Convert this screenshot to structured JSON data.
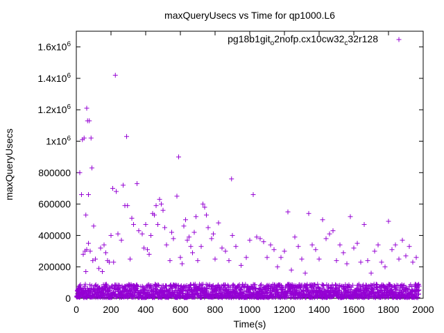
{
  "chart_data": {
    "type": "scatter",
    "title": "maxQueryUsecs vs Time for qp1000.L6",
    "xlabel": "Time(s)",
    "ylabel": "maxQueryUsecs",
    "xlim": [
      0,
      2000
    ],
    "ylim": [
      0,
      1700000
    ],
    "x_ticks": [
      {
        "value": 0,
        "label": "0"
      },
      {
        "value": 200,
        "label": "200"
      },
      {
        "value": 400,
        "label": "400"
      },
      {
        "value": 600,
        "label": "600"
      },
      {
        "value": 800,
        "label": "800"
      },
      {
        "value": 1000,
        "label": "1000"
      },
      {
        "value": 1200,
        "label": "1200"
      },
      {
        "value": 1400,
        "label": "1400"
      },
      {
        "value": 1600,
        "label": "1600"
      },
      {
        "value": 1800,
        "label": "1800"
      },
      {
        "value": 2000,
        "label": "2000"
      }
    ],
    "y_ticks": [
      {
        "value": 0,
        "label": "0"
      },
      {
        "value": 200000,
        "label": "200000"
      },
      {
        "value": 400000,
        "label": "400000"
      },
      {
        "value": 600000,
        "label": "600000"
      },
      {
        "value": 800000,
        "label": "800000"
      },
      {
        "value": 1000000,
        "label": "1x10",
        "sup": "6"
      },
      {
        "value": 1200000,
        "label": "1.2x10",
        "sup": "6"
      },
      {
        "value": 1400000,
        "label": "1.4x10",
        "sup": "6"
      },
      {
        "value": 1600000,
        "label": "1.6x10",
        "sup": "6"
      }
    ],
    "legend": {
      "position": "top-right",
      "parts": [
        {
          "text": "pg18b1git",
          "sub": false
        },
        {
          "text": "o",
          "sub": true
        },
        {
          "text": "2nofp.cx10cw32",
          "sub": false
        },
        {
          "text": "c",
          "sub": true
        },
        {
          "text": "32r128",
          "sub": false
        }
      ]
    },
    "grid": false,
    "series": [
      {
        "name": "pg18b1git_o2nofp.cx10cw32_c32r128",
        "color": "#9400d3",
        "marker": "plus",
        "points": [
          [
            20,
            800000
          ],
          [
            30,
            660000
          ],
          [
            35,
            1010000
          ],
          [
            45,
            1020000
          ],
          [
            60,
            1210000
          ],
          [
            65,
            1130000
          ],
          [
            75,
            1130000
          ],
          [
            85,
            1020000
          ],
          [
            90,
            830000
          ],
          [
            70,
            660000
          ],
          [
            55,
            530000
          ],
          [
            100,
            460000
          ],
          [
            40,
            280000
          ],
          [
            50,
            300000
          ],
          [
            55,
            170000
          ],
          [
            60,
            310000
          ],
          [
            70,
            350000
          ],
          [
            80,
            300000
          ],
          [
            95,
            240000
          ],
          [
            110,
            250000
          ],
          [
            130,
            190000
          ],
          [
            140,
            320000
          ],
          [
            150,
            170000
          ],
          [
            160,
            340000
          ],
          [
            170,
            290000
          ],
          [
            180,
            240000
          ],
          [
            190,
            230000
          ],
          [
            200,
            400000
          ],
          [
            210,
            700000
          ],
          [
            215,
            230000
          ],
          [
            225,
            1420000
          ],
          [
            230,
            680000
          ],
          [
            240,
            410000
          ],
          [
            260,
            370000
          ],
          [
            270,
            720000
          ],
          [
            280,
            590000
          ],
          [
            290,
            1030000
          ],
          [
            295,
            590000
          ],
          [
            310,
            250000
          ],
          [
            320,
            510000
          ],
          [
            330,
            470000
          ],
          [
            350,
            730000
          ],
          [
            360,
            430000
          ],
          [
            380,
            410000
          ],
          [
            390,
            320000
          ],
          [
            400,
            470000
          ],
          [
            410,
            310000
          ],
          [
            420,
            280000
          ],
          [
            430,
            400000
          ],
          [
            440,
            540000
          ],
          [
            450,
            530000
          ],
          [
            460,
            590000
          ],
          [
            470,
            470000
          ],
          [
            480,
            630000
          ],
          [
            490,
            600000
          ],
          [
            500,
            560000
          ],
          [
            510,
            450000
          ],
          [
            520,
            340000
          ],
          [
            540,
            240000
          ],
          [
            550,
            420000
          ],
          [
            560,
            380000
          ],
          [
            580,
            650000
          ],
          [
            590,
            900000
          ],
          [
            600,
            260000
          ],
          [
            610,
            220000
          ],
          [
            620,
            460000
          ],
          [
            630,
            500000
          ],
          [
            640,
            370000
          ],
          [
            650,
            390000
          ],
          [
            660,
            330000
          ],
          [
            670,
            290000
          ],
          [
            680,
            420000
          ],
          [
            690,
            520000
          ],
          [
            700,
            240000
          ],
          [
            720,
            330000
          ],
          [
            730,
            600000
          ],
          [
            740,
            580000
          ],
          [
            750,
            530000
          ],
          [
            760,
            450000
          ],
          [
            780,
            380000
          ],
          [
            790,
            410000
          ],
          [
            800,
            250000
          ],
          [
            820,
            480000
          ],
          [
            840,
            320000
          ],
          [
            860,
            300000
          ],
          [
            880,
            240000
          ],
          [
            895,
            760000
          ],
          [
            900,
            400000
          ],
          [
            920,
            330000
          ],
          [
            950,
            210000
          ],
          [
            980,
            260000
          ],
          [
            1000,
            370000
          ],
          [
            1020,
            660000
          ],
          [
            1040,
            390000
          ],
          [
            1060,
            380000
          ],
          [
            1080,
            360000
          ],
          [
            1100,
            260000
          ],
          [
            1120,
            340000
          ],
          [
            1140,
            310000
          ],
          [
            1160,
            200000
          ],
          [
            1180,
            260000
          ],
          [
            1200,
            300000
          ],
          [
            1220,
            550000
          ],
          [
            1240,
            180000
          ],
          [
            1260,
            390000
          ],
          [
            1280,
            330000
          ],
          [
            1300,
            250000
          ],
          [
            1320,
            160000
          ],
          [
            1340,
            540000
          ],
          [
            1360,
            340000
          ],
          [
            1380,
            310000
          ],
          [
            1400,
            250000
          ],
          [
            1420,
            500000
          ],
          [
            1440,
            380000
          ],
          [
            1460,
            410000
          ],
          [
            1480,
            430000
          ],
          [
            1500,
            240000
          ],
          [
            1520,
            340000
          ],
          [
            1540,
            290000
          ],
          [
            1560,
            220000
          ],
          [
            1580,
            520000
          ],
          [
            1600,
            320000
          ],
          [
            1620,
            350000
          ],
          [
            1640,
            230000
          ],
          [
            1660,
            470000
          ],
          [
            1680,
            240000
          ],
          [
            1700,
            160000
          ],
          [
            1720,
            300000
          ],
          [
            1740,
            340000
          ],
          [
            1760,
            230000
          ],
          [
            1780,
            200000
          ],
          [
            1800,
            490000
          ],
          [
            1820,
            310000
          ],
          [
            1840,
            340000
          ],
          [
            1860,
            250000
          ],
          [
            1880,
            370000
          ],
          [
            1900,
            270000
          ],
          [
            1920,
            330000
          ],
          [
            1940,
            230000
          ],
          [
            1960,
            260000
          ],
          [
            1975,
            1650000
          ]
        ],
        "baseline_band": {
          "x_from": 5,
          "x_to": 1975,
          "y_min": 5000,
          "y_max": 90000
        }
      }
    ]
  }
}
